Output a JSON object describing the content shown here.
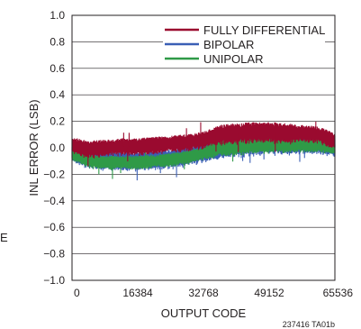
{
  "chart_data": {
    "type": "line",
    "xlabel": "OUTPUT CODE",
    "ylabel": "INL ERROR (LSB)",
    "xlim": [
      0,
      65536
    ],
    "ylim": [
      -1.0,
      1.0
    ],
    "x_ticks": [
      0,
      16384,
      32768,
      49152,
      65536
    ],
    "x_tick_labels": [
      "0",
      "16384",
      "32768",
      "49152",
      "65536"
    ],
    "y_ticks": [
      -1.0,
      -0.8,
      -0.6,
      -0.4,
      -0.2,
      0.0,
      0.2,
      0.4,
      0.6,
      0.8,
      1.0
    ],
    "y_tick_labels": [
      "−1.0",
      "−0.8",
      "−0.6",
      "−0.4",
      "−0.2",
      "0.0",
      "0.2",
      "0.4",
      "0.6",
      "0.8",
      "1.0"
    ],
    "grid": true,
    "legend_position": "top-right",
    "x": [
      0,
      4096,
      8192,
      12288,
      16384,
      20480,
      24576,
      28672,
      32768,
      36864,
      40960,
      45056,
      49152,
      53248,
      57344,
      61440,
      65536
    ],
    "series": [
      {
        "name": "FULLY DIFFERENTIAL",
        "color": "#9a0a2f",
        "values": [
          0.02,
          -0.01,
          0.0,
          0.01,
          0.01,
          0.02,
          0.03,
          0.04,
          0.06,
          0.1,
          0.11,
          0.12,
          0.12,
          0.11,
          0.11,
          0.1,
          0.05
        ],
        "spread": [
          0.05,
          0.05,
          0.05,
          0.05,
          0.05,
          0.05,
          0.05,
          0.05,
          0.05,
          0.06,
          0.06,
          0.06,
          0.06,
          0.06,
          0.05,
          0.05,
          0.05
        ]
      },
      {
        "name": "BIPOLAR",
        "color": "#3a5fb5",
        "values": [
          -0.04,
          -0.08,
          -0.09,
          -0.1,
          -0.1,
          -0.09,
          -0.08,
          -0.06,
          -0.03,
          0.01,
          0.02,
          0.03,
          0.04,
          0.04,
          0.03,
          0.03,
          0.0
        ],
        "spread": [
          0.05,
          0.06,
          0.06,
          0.06,
          0.06,
          0.06,
          0.06,
          0.06,
          0.06,
          0.07,
          0.07,
          0.07,
          0.07,
          0.07,
          0.06,
          0.06,
          0.05
        ]
      },
      {
        "name": "UNIPOLAR",
        "color": "#2f9a47",
        "values": [
          -0.05,
          -0.1,
          -0.11,
          -0.11,
          -0.11,
          -0.1,
          -0.09,
          -0.07,
          -0.04,
          0.0,
          0.01,
          0.02,
          0.03,
          0.03,
          0.02,
          0.02,
          -0.01
        ],
        "spread": [
          0.03,
          0.04,
          0.04,
          0.04,
          0.04,
          0.04,
          0.04,
          0.04,
          0.04,
          0.05,
          0.05,
          0.05,
          0.05,
          0.05,
          0.04,
          0.04,
          0.03
        ]
      }
    ],
    "figure_code": "237416 TA01b",
    "edge_text": "E"
  }
}
